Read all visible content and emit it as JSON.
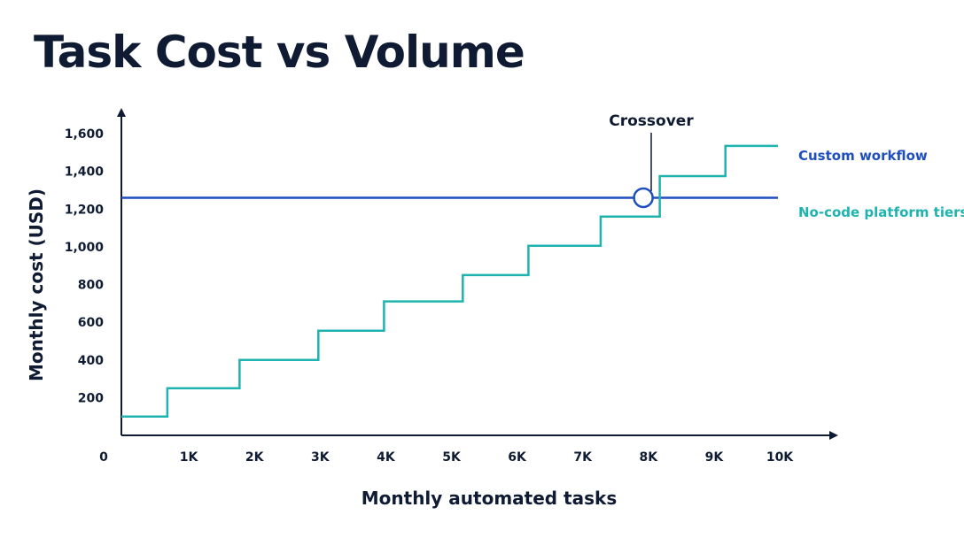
{
  "title": "Task Cost vs Volume",
  "colors": {
    "custom": "#1f4fbf",
    "nocode": "#1fb3b0",
    "text": "#0f1b33"
  },
  "chart_data": {
    "type": "line",
    "title": "Task Cost vs Volume",
    "xlabel": "Monthly automated tasks",
    "ylabel": "Monthly cost (USD)",
    "xlim": [
      0,
      10000
    ],
    "ylim": [
      0,
      1600
    ],
    "x_ticks": [
      {
        "value": 0,
        "label": "0"
      },
      {
        "value": 1000,
        "label": "1K"
      },
      {
        "value": 2000,
        "label": "2K"
      },
      {
        "value": 3000,
        "label": "3K"
      },
      {
        "value": 4000,
        "label": "4K"
      },
      {
        "value": 5000,
        "label": "5K"
      },
      {
        "value": 6000,
        "label": "6K"
      },
      {
        "value": 7000,
        "label": "7K"
      },
      {
        "value": 8000,
        "label": "8K"
      },
      {
        "value": 9000,
        "label": "9K"
      },
      {
        "value": 10000,
        "label": "10K"
      }
    ],
    "y_ticks": [
      {
        "value": 200,
        "label": "200"
      },
      {
        "value": 400,
        "label": "400"
      },
      {
        "value": 600,
        "label": "600"
      },
      {
        "value": 800,
        "label": "800"
      },
      {
        "value": 1000,
        "label": "1,000"
      },
      {
        "value": 1200,
        "label": "1,200"
      },
      {
        "value": 1400,
        "label": "1,400"
      },
      {
        "value": 1600,
        "label": "1,600"
      }
    ],
    "grid": false,
    "legend_position": "right",
    "series": [
      {
        "name": "Custom workflow",
        "color": "#1f4fbf",
        "kind": "flat",
        "value": 1260,
        "x": [
          0,
          10000
        ]
      },
      {
        "name": "No-code platform tiers",
        "color": "#1fb3b0",
        "kind": "step",
        "steps": [
          {
            "from": 0,
            "to": 700,
            "value": 100
          },
          {
            "from": 700,
            "to": 1800,
            "value": 250
          },
          {
            "from": 1800,
            "to": 3000,
            "value": 400
          },
          {
            "from": 3000,
            "to": 4000,
            "value": 555
          },
          {
            "from": 4000,
            "to": 5200,
            "value": 710
          },
          {
            "from": 5200,
            "to": 6200,
            "value": 850
          },
          {
            "from": 6200,
            "to": 7300,
            "value": 1005
          },
          {
            "from": 7300,
            "to": 8200,
            "value": 1160
          },
          {
            "from": 8200,
            "to": 9200,
            "value": 1375
          },
          {
            "from": 9200,
            "to": 10000,
            "value": 1535
          }
        ]
      }
    ],
    "annotations": [
      {
        "text": "Crossover",
        "x": 7950,
        "y": 1260
      }
    ]
  }
}
